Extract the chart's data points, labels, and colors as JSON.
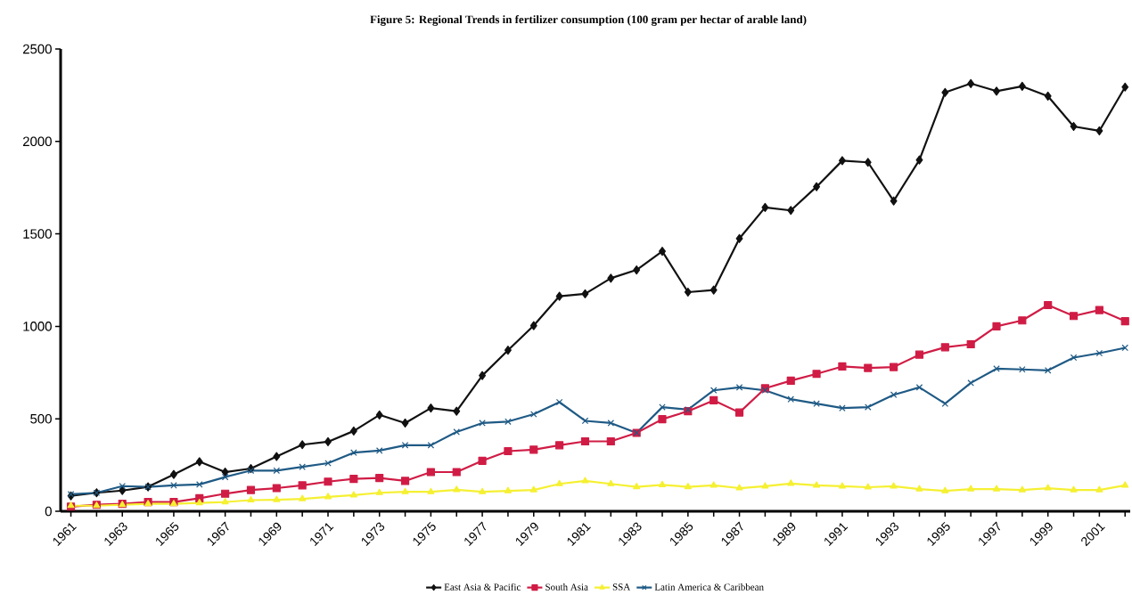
{
  "chart_data": {
    "type": "line",
    "title": "Figure 5: Regional Trends in fertilizer consumption (100 gram per hectar of arable land)",
    "x": [
      1961,
      1962,
      1963,
      1964,
      1965,
      1966,
      1967,
      1968,
      1969,
      1970,
      1971,
      1972,
      1973,
      1974,
      1975,
      1976,
      1977,
      1978,
      1979,
      1980,
      1981,
      1982,
      1983,
      1984,
      1985,
      1986,
      1987,
      1988,
      1989,
      1990,
      1991,
      1992,
      1993,
      1994,
      1995,
      1996,
      1997,
      1998,
      1999,
      2000,
      2001,
      2002
    ],
    "series": [
      {
        "name": "East Asia & Pacific",
        "color": "#111111",
        "marker": "diamond",
        "values": [
          83,
          100,
          112,
          132,
          199,
          268,
          212,
          231,
          296,
          360,
          376,
          434,
          521,
          477,
          558,
          541,
          734,
          871,
          1004,
          1163,
          1176,
          1260,
          1305,
          1406,
          1185,
          1196,
          1475,
          1643,
          1627,
          1755,
          1896,
          1887,
          1678,
          1900,
          2265,
          2313,
          2272,
          2298,
          2245,
          2081,
          2057,
          2294
        ]
      },
      {
        "name": "South Asia",
        "color": "#d01c45",
        "marker": "square",
        "values": [
          25,
          35,
          40,
          50,
          50,
          70,
          95,
          115,
          125,
          140,
          160,
          175,
          180,
          164,
          212,
          212,
          273,
          325,
          333,
          357,
          378,
          378,
          424,
          498,
          541,
          600,
          534,
          665,
          706,
          743,
          783,
          775,
          780,
          847,
          887,
          903,
          1000,
          1032,
          1115,
          1056,
          1088,
          1028
        ]
      },
      {
        "name": "SSA",
        "color": "#f5f032",
        "marker": "triangle",
        "values": [
          30,
          30,
          35,
          40,
          40,
          45,
          50,
          60,
          62,
          67,
          78,
          87,
          100,
          105,
          105,
          116,
          105,
          110,
          115,
          148,
          164,
          148,
          132,
          143,
          132,
          140,
          125,
          135,
          150,
          140,
          135,
          130,
          135,
          120,
          110,
          120,
          120,
          115,
          125,
          115,
          115,
          140
        ]
      },
      {
        "name": "Latin America & Caribbean",
        "color": "#1f5a85",
        "marker": "cross",
        "values": [
          92,
          100,
          136,
          132,
          140,
          145,
          185,
          220,
          220,
          240,
          260,
          317,
          328,
          357,
          357,
          429,
          477,
          485,
          525,
          590,
          489,
          477,
          424,
          563,
          550,
          654,
          670,
          654,
          606,
          582,
          558,
          563,
          630,
          670,
          582,
          694,
          771,
          767,
          762,
          831,
          855,
          884
        ]
      }
    ],
    "xlim": [
      1960.6,
      2002.2
    ],
    "xticks": [
      1961,
      {
        "value": 1962,
        "label": null
      },
      1963,
      {
        "value": 1964,
        "label": null
      },
      1965,
      {
        "value": 1966,
        "label": null
      },
      1967,
      {
        "value": 1968,
        "label": null
      },
      1969,
      {
        "value": 1970,
        "label": null
      },
      1971,
      {
        "value": 1972,
        "label": null
      },
      1973,
      {
        "value": 1974,
        "label": null
      },
      1975,
      {
        "value": 1976,
        "label": null
      },
      1977,
      {
        "value": 1978,
        "label": null
      },
      1979,
      {
        "value": 1980,
        "label": null
      },
      1981,
      {
        "value": 1982,
        "label": null
      },
      1983,
      {
        "value": 1984,
        "label": null
      },
      1985,
      {
        "value": 1986,
        "label": null
      },
      1987,
      {
        "value": 1988,
        "label": null
      },
      1989,
      {
        "value": 1990,
        "label": null
      },
      1991,
      {
        "value": 1992,
        "label": null
      },
      1993,
      {
        "value": 1994,
        "label": null
      },
      1995,
      {
        "value": 1996,
        "label": null
      },
      1997,
      {
        "value": 1998,
        "label": null
      },
      1999,
      {
        "value": 2000,
        "label": null
      },
      2001,
      {
        "value": 2002,
        "label": null
      }
    ],
    "ylim": [
      0,
      2500
    ],
    "yticks": [
      0,
      500,
      1000,
      1500,
      2000,
      2500
    ],
    "grid": false,
    "legend": "bottom",
    "line_style": "solid"
  }
}
